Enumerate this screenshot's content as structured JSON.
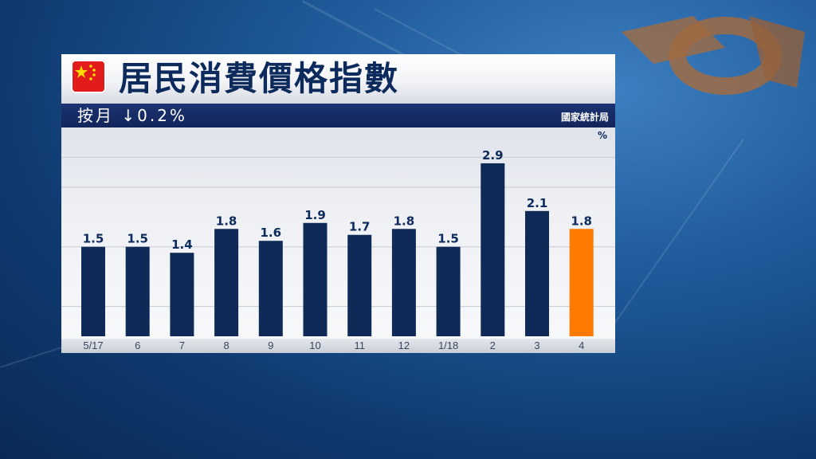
{
  "header": {
    "title": "居民消費價格指數",
    "subtitle": "按月 ↓0.2%",
    "source": "國家統計局",
    "flag_icon": "china-flag-icon"
  },
  "colors": {
    "bar": "#0f2a57",
    "highlight_bar": "#ff7a00",
    "title": "#0d2a5c",
    "sub_bar": "#12245a"
  },
  "chart_data": {
    "type": "bar",
    "title": "居民消費價格指數",
    "subtitle": "按月 ↓0.2%",
    "unit": "%",
    "categories": [
      "5/17",
      "6",
      "7",
      "8",
      "9",
      "10",
      "11",
      "12",
      "1/18",
      "2",
      "3",
      "4"
    ],
    "values": [
      1.5,
      1.5,
      1.4,
      1.8,
      1.6,
      1.9,
      1.7,
      1.8,
      1.5,
      2.9,
      2.1,
      1.8
    ],
    "value_labels": [
      "1.5",
      "1.5",
      "1.4",
      "1.8",
      "1.6",
      "1.9",
      "1.7",
      "1.8",
      "1.5",
      "2.9",
      "2.1",
      "1.8"
    ],
    "highlight_index": 11,
    "ylim": [
      0,
      3.5
    ],
    "grid": true,
    "legend": "none"
  }
}
